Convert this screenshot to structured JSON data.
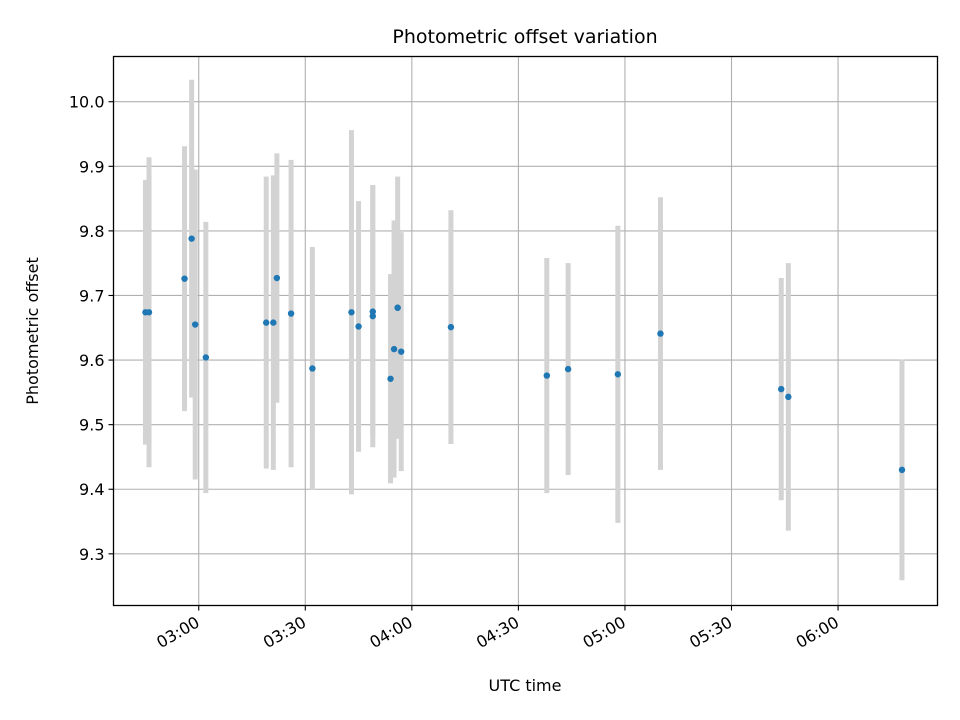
{
  "chart_data": {
    "type": "scatter",
    "title": "Photometric offset variation",
    "xlabel": "UTC time",
    "ylabel": "Photometric offset",
    "x_ticks": [
      "03:00",
      "03:30",
      "04:00",
      "04:30",
      "05:00",
      "05:30",
      "06:00"
    ],
    "y_ticks": [
      "9.3",
      "9.4",
      "9.5",
      "9.6",
      "9.7",
      "9.8",
      "9.9",
      "10.0"
    ],
    "xlim": [
      "02:36",
      "06:28"
    ],
    "ylim": [
      9.22,
      10.07
    ],
    "grid": true,
    "colors": {
      "points": "#1f77b4",
      "errorbars": "#d3d3d3",
      "grid": "#b0b0b0"
    },
    "points": [
      {
        "x": "02:45",
        "y": 9.674,
        "err": 0.205
      },
      {
        "x": "02:46",
        "y": 9.674,
        "err": 0.24
      },
      {
        "x": "02:56",
        "y": 9.726,
        "err": 0.205
      },
      {
        "x": "02:58",
        "y": 9.788,
        "err": 0.246
      },
      {
        "x": "02:59",
        "y": 9.655,
        "err": 0.24
      },
      {
        "x": "03:02",
        "y": 9.604,
        "err": 0.21
      },
      {
        "x": "03:19",
        "y": 9.658,
        "err": 0.226
      },
      {
        "x": "03:21",
        "y": 9.658,
        "err": 0.228
      },
      {
        "x": "03:22",
        "y": 9.727,
        "err": 0.193
      },
      {
        "x": "03:26",
        "y": 9.672,
        "err": 0.238
      },
      {
        "x": "03:32",
        "y": 9.587,
        "err": 0.188
      },
      {
        "x": "03:43",
        "y": 9.674,
        "err": 0.282
      },
      {
        "x": "03:45",
        "y": 9.652,
        "err": 0.194
      },
      {
        "x": "03:49",
        "y": 9.675,
        "err": 0.195
      },
      {
        "x": "03:49",
        "y": 9.668,
        "err": 0.203
      },
      {
        "x": "03:54",
        "y": 9.571,
        "err": 0.162
      },
      {
        "x": "03:55",
        "y": 9.617,
        "err": 0.199
      },
      {
        "x": "03:56",
        "y": 9.681,
        "err": 0.203
      },
      {
        "x": "03:56",
        "y": 9.681,
        "err": 0.123
      },
      {
        "x": "03:57",
        "y": 9.613,
        "err": 0.185
      },
      {
        "x": "04:11",
        "y": 9.651,
        "err": 0.181
      },
      {
        "x": "04:38",
        "y": 9.576,
        "err": 0.182
      },
      {
        "x": "04:44",
        "y": 9.586,
        "err": 0.164
      },
      {
        "x": "04:58",
        "y": 9.578,
        "err": 0.23
      },
      {
        "x": "05:10",
        "y": 9.641,
        "err": 0.211
      },
      {
        "x": "05:44",
        "y": 9.555,
        "err": 0.172
      },
      {
        "x": "05:46",
        "y": 9.543,
        "err": 0.207
      },
      {
        "x": "06:18",
        "y": 9.43,
        "err": 0.171
      }
    ]
  }
}
